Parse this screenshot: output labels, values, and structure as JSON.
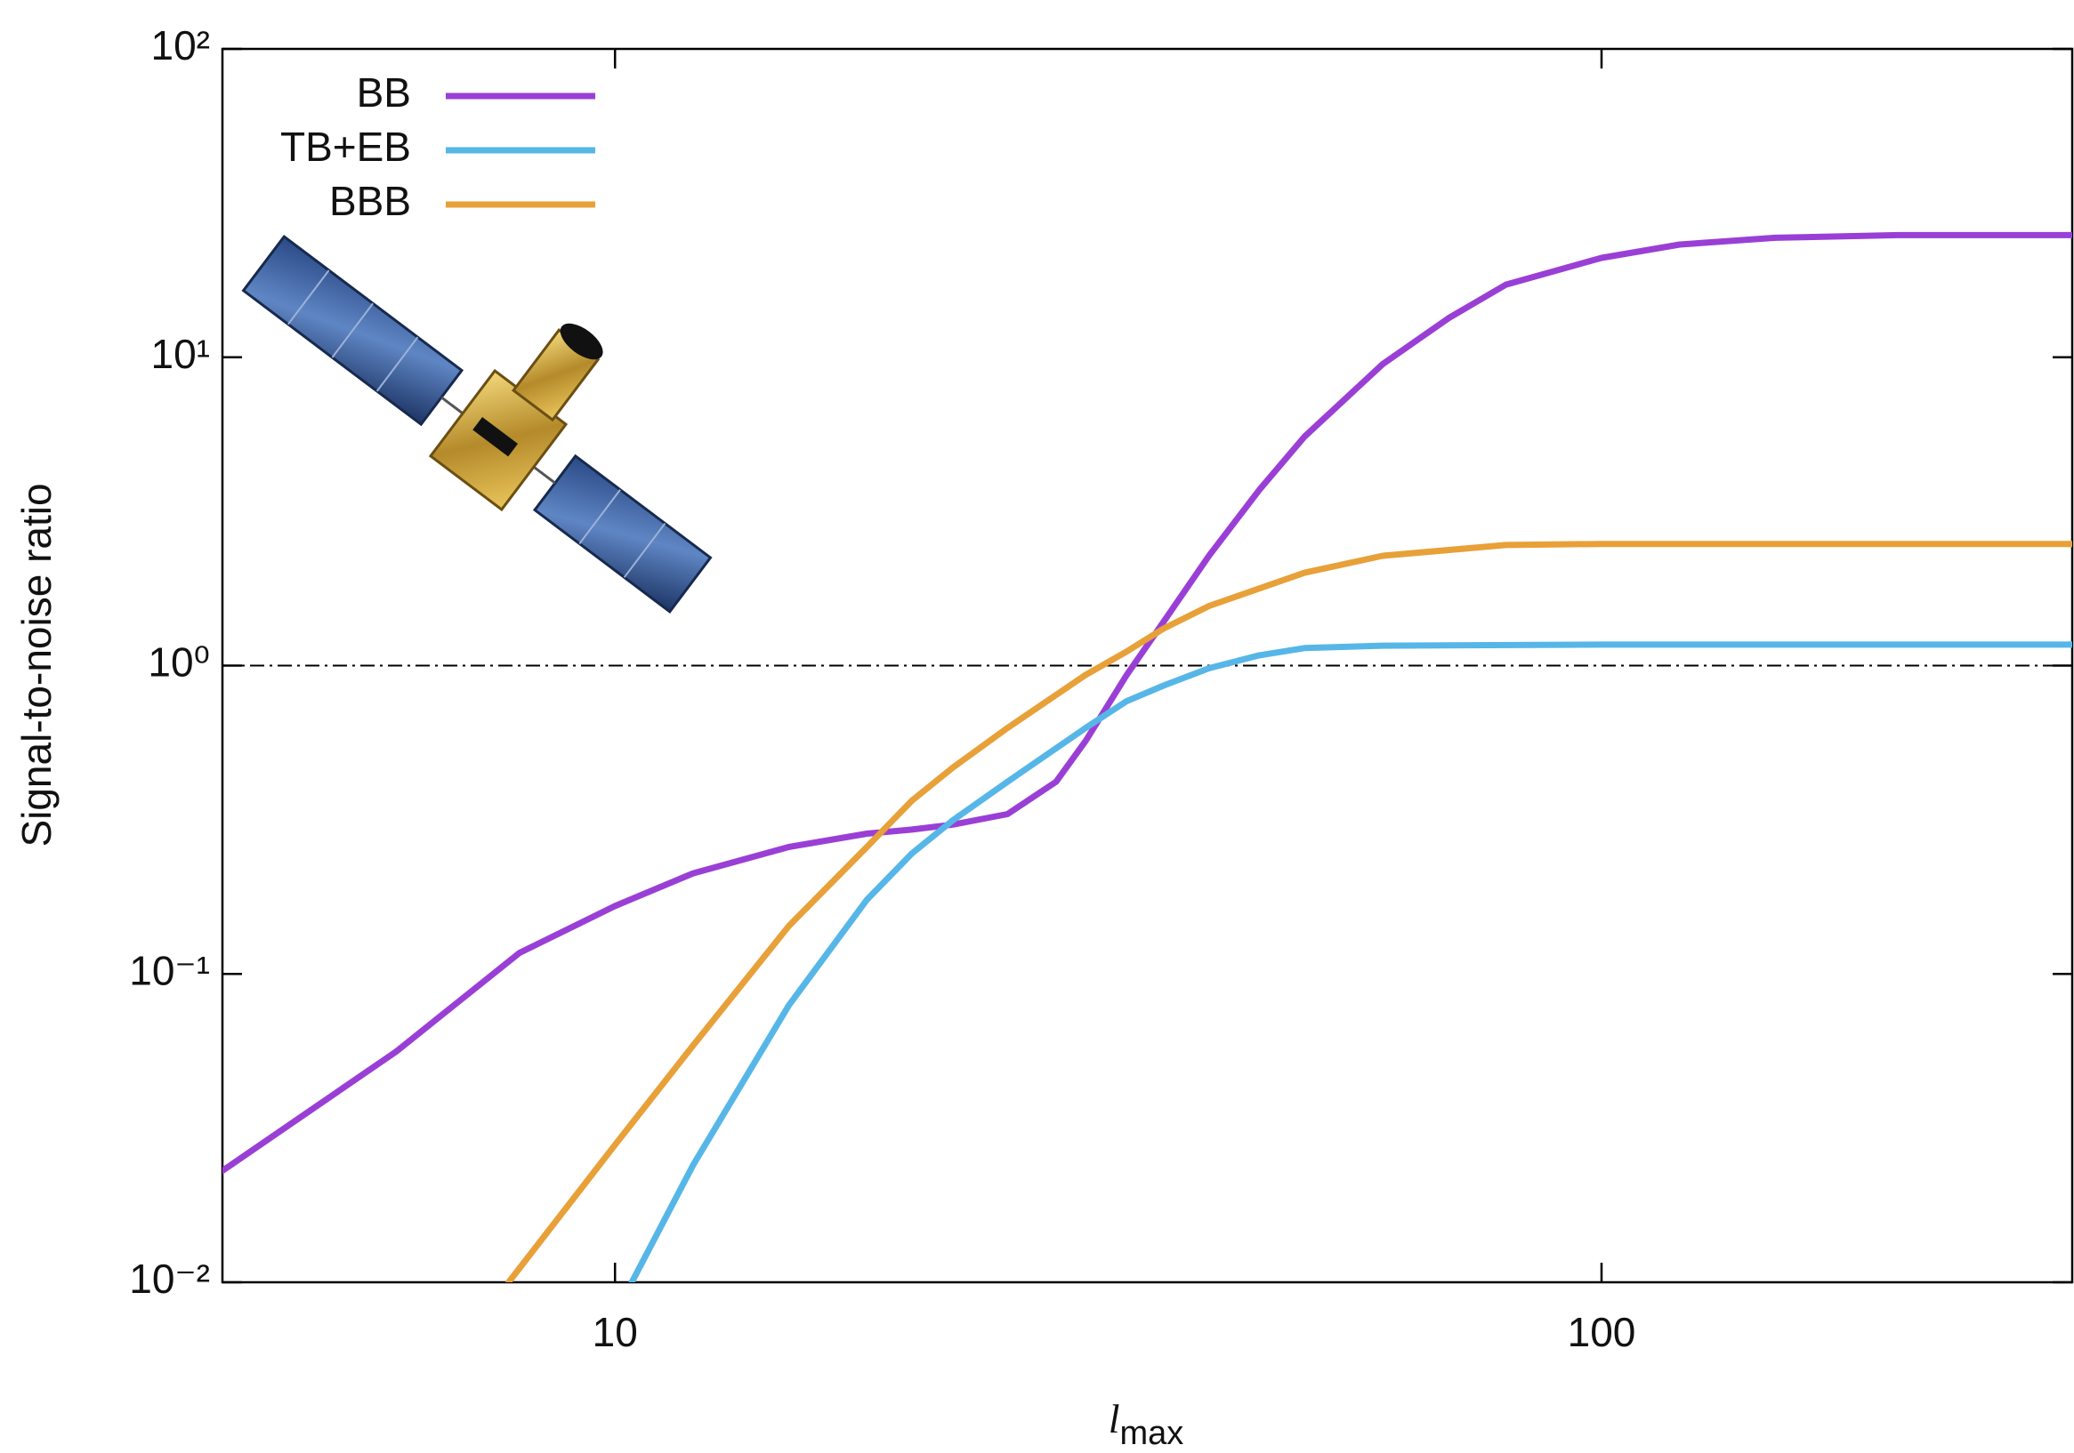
{
  "chart_data": {
    "type": "line",
    "xlabel": {
      "main": "l",
      "sub": "max"
    },
    "ylabel": "Signal-to-noise ratio",
    "xscale": "log",
    "yscale": "log",
    "xlim": [
      4,
      300
    ],
    "ylim": [
      0.01,
      100
    ],
    "xticks": [
      10,
      100
    ],
    "yticks": [
      {
        "value": 0.01,
        "label": "10⁻²"
      },
      {
        "value": 0.1,
        "label": "10⁻¹"
      },
      {
        "value": 1,
        "label": "10⁰"
      },
      {
        "value": 10,
        "label": "10¹"
      },
      {
        "value": 100,
        "label": "10²"
      }
    ],
    "reference_line": 1,
    "legend": "upper left",
    "series": [
      {
        "name": "BB",
        "color": "#9a3fd6",
        "x": [
          4,
          6,
          8,
          10,
          12,
          15,
          18,
          20,
          22,
          25,
          28,
          30,
          33,
          36,
          40,
          45,
          50,
          60,
          70,
          80,
          100,
          120,
          150,
          200,
          300
        ],
        "values": [
          0.023,
          0.056,
          0.117,
          0.166,
          0.212,
          0.258,
          0.285,
          0.294,
          0.305,
          0.33,
          0.42,
          0.57,
          0.93,
          1.39,
          2.27,
          3.72,
          5.53,
          9.5,
          13.4,
          17.2,
          21,
          23.2,
          24.4,
          24.9,
          24.9
        ]
      },
      {
        "name": "TB+EB",
        "color": "#56b6e8",
        "x": [
          10.4,
          12,
          15,
          18,
          20,
          22,
          25,
          30,
          33,
          36,
          40,
          45,
          50,
          60,
          100,
          300
        ],
        "values": [
          0.01,
          0.024,
          0.079,
          0.174,
          0.246,
          0.315,
          0.42,
          0.628,
          0.766,
          0.862,
          0.98,
          1.08,
          1.14,
          1.16,
          1.17,
          1.17
        ]
      },
      {
        "name": "BBB",
        "color": "#e8a038",
        "x": [
          7.8,
          8,
          10,
          12,
          15,
          18,
          20,
          22,
          25,
          30,
          33,
          36,
          40,
          50,
          60,
          80,
          100,
          300
        ],
        "values": [
          0.01,
          0.0111,
          0.0279,
          0.0586,
          0.143,
          0.258,
          0.365,
          0.467,
          0.628,
          0.933,
          1.11,
          1.32,
          1.56,
          2.0,
          2.27,
          2.46,
          2.48,
          2.48
        ]
      }
    ]
  }
}
